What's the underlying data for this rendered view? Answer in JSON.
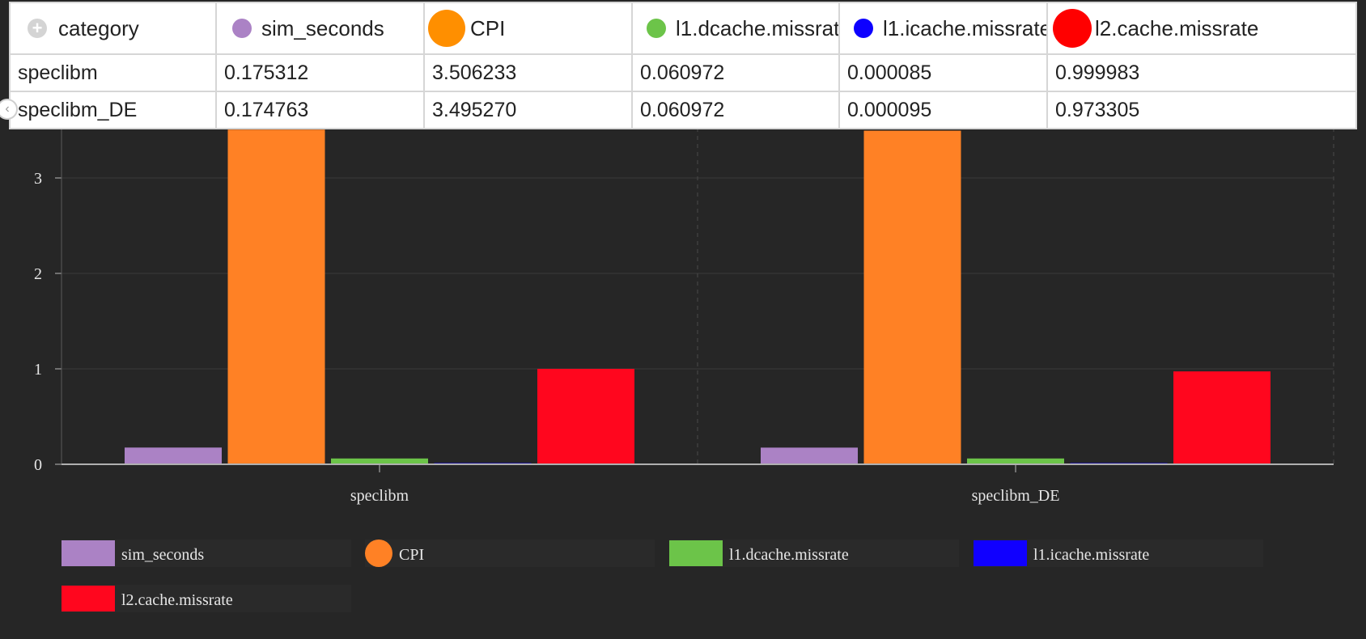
{
  "table": {
    "headers": [
      {
        "label": "category",
        "icon": "add-icon"
      },
      {
        "label": "sim_seconds",
        "color": "#ab82c5"
      },
      {
        "label": "CPI",
        "color": "#ff8f00"
      },
      {
        "label": "l1.dcache.missrate",
        "color": "#6cc449"
      },
      {
        "label": "l1.icache.missrate",
        "color": "#0d00ff"
      },
      {
        "label": "l2.cache.missrate",
        "color": "#ff0000"
      }
    ],
    "rows": [
      [
        "speclibm",
        "0.175312",
        "3.506233",
        "0.060972",
        "0.000085",
        "0.999983"
      ],
      [
        "speclibm_DE",
        "0.174763",
        "3.495270",
        "0.060972",
        "0.000095",
        "0.973305"
      ]
    ]
  },
  "chart_data": {
    "type": "bar",
    "categories": [
      "speclibm",
      "speclibm_DE"
    ],
    "series": [
      {
        "name": "sim_seconds",
        "values": [
          0.175312,
          0.174763
        ],
        "color": "#ab82c5"
      },
      {
        "name": "CPI",
        "values": [
          3.506233,
          3.49527
        ],
        "color": "#ff8125"
      },
      {
        "name": "l1.dcache.missrate",
        "values": [
          0.060972,
          0.060972
        ],
        "color": "#6cc449"
      },
      {
        "name": "l1.icache.missrate",
        "values": [
          8.5e-05,
          9.5e-05
        ],
        "color": "#1000ff"
      },
      {
        "name": "l2.cache.missrate",
        "values": [
          0.999983,
          0.973305
        ],
        "color": "#ff061e"
      }
    ],
    "y_ticks": [
      "0",
      "1",
      "2",
      "3"
    ],
    "ylim": [
      0,
      3.5
    ],
    "grid": true,
    "legend_position": "bottom",
    "xlabel": "",
    "ylabel": "",
    "title": ""
  }
}
